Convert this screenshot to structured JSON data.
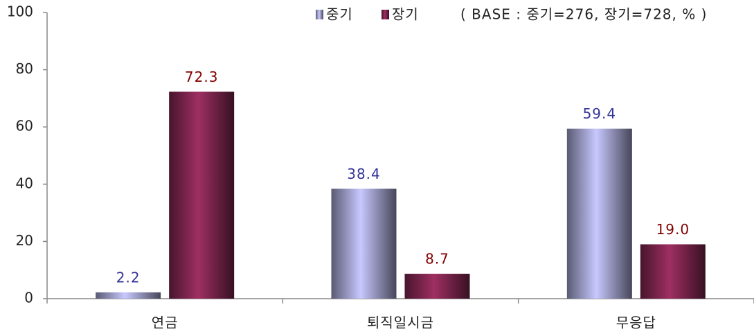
{
  "chart_data": {
    "type": "bar",
    "categories": [
      "연금",
      "퇴직일시금",
      "무응답"
    ],
    "series": [
      {
        "name": "중기",
        "color": "#c8c8ff",
        "label_color": "#333399",
        "values": [
          2.2,
          38.4,
          59.4
        ],
        "value_labels": [
          "2.2",
          "38.4",
          "59.4"
        ]
      },
      {
        "name": "장기",
        "color": "#9e2f62",
        "label_color": "#800000",
        "values": [
          72.3,
          8.7,
          19.0
        ],
        "value_labels": [
          "72.3",
          "8.7",
          "19.0"
        ]
      }
    ],
    "annotation": "( BASE : 중기=276, 장기=728, % )",
    "ylim": [
      0,
      100
    ],
    "yticks": [
      0,
      20,
      40,
      60,
      80,
      100
    ],
    "grid": false
  }
}
